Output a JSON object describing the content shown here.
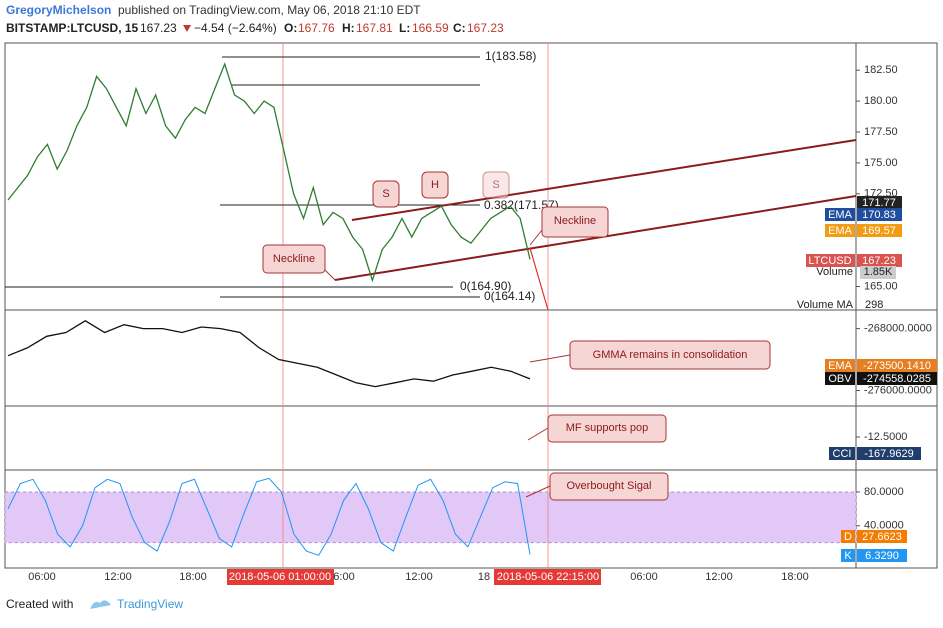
{
  "header": {
    "author": "GregoryMichelson",
    "published": "published on TradingView.com, May 06, 2018 21:10 EDT",
    "symbol": "BITSTAMP:LTCUSD, 15",
    "last": "167.23",
    "change": "−4.54 (−2.64%)",
    "o_label": "O:",
    "o": "167.76",
    "h_label": "H:",
    "h": "167.81",
    "l_label": "L:",
    "l": "166.59",
    "c_label": "C:",
    "c": "167.23"
  },
  "price": {
    "ylim": [
      163.1,
      184.7
    ],
    "yticks": [
      {
        "value": 182.5,
        "label": "182.50"
      },
      {
        "value": 180,
        "label": "180.00"
      },
      {
        "value": 177.5,
        "label": "177.50"
      },
      {
        "value": 175,
        "label": "175.00"
      },
      {
        "value": 172.5,
        "label": "172.50"
      },
      {
        "value": 165,
        "label": "165.00"
      }
    ],
    "values": [
      172.0,
      173.0,
      174.0,
      175.5,
      176.5,
      174.5,
      176.0,
      178.0,
      179.5,
      182.0,
      181.0,
      179.5,
      178.0,
      181.0,
      179.0,
      180.5,
      178.0,
      177.0,
      178.5,
      179.5,
      179.0,
      181.0,
      183.0,
      180.5,
      180.0,
      179.0,
      180.0,
      179.5,
      176.0,
      172.5,
      170.5,
      173.0,
      170.0,
      171.0,
      170.5,
      169.0,
      168.0,
      165.5,
      168.0,
      169.0,
      170.5,
      169.0,
      170.5,
      171.0,
      171.5,
      170.0,
      169.0,
      168.5,
      169.5,
      170.5,
      171.0,
      171.5,
      170.5,
      167.2
    ],
    "labels": {
      "top": "171.77",
      "ema1_name": "EMA",
      "ema1": "170.83",
      "ema2_name": "EMA",
      "ema2": "169.57",
      "sym": "LTCUSD",
      "last": "167.23",
      "vol_name": "Volume",
      "vol": "1.85K",
      "volma_name": "Volume MA",
      "volma": "298"
    },
    "fib": [
      "1(183.58)",
      "0.382(171.57)",
      "0(164.90)",
      "0(164.14)"
    ]
  },
  "annotations": {
    "s1": "S",
    "h": "H",
    "s2": "S",
    "neck1": "Neckline",
    "neck2": "Neckline",
    "gmma": "GMMA remains in consolidation",
    "mf": "MF supports pop",
    "ob": "Overbought Sigal"
  },
  "obv": {
    "ylim": [
      -278000,
      -265600
    ],
    "yticks": [
      {
        "value": -268000,
        "label": "-268000.0000"
      },
      {
        "value": -276000,
        "label": "-276000.0000"
      }
    ],
    "values": [
      -271500,
      -270500,
      -269000,
      -268500,
      -267000,
      -268500,
      -267500,
      -268000,
      -268000,
      -268500,
      -267800,
      -268000,
      -268500,
      -270500,
      -272000,
      -272500,
      -273000,
      -274000,
      -275000,
      -275500,
      -275000,
      -274500,
      -274800,
      -274000,
      -273500,
      -273000,
      -273500,
      -274500
    ],
    "labels": {
      "ema_name": "EMA",
      "ema": "-273500.1410",
      "obv_name": "OBV",
      "obv": "-274558.0285"
    }
  },
  "cci": {
    "yticks": [
      {
        "value": -12.5,
        "label": "-12.5000"
      }
    ],
    "labels": {
      "name": "CCI",
      "value": "-167.9629"
    }
  },
  "stoch": {
    "ylim": [
      -10,
      106
    ],
    "yticks": [
      {
        "value": 80,
        "label": "80.0000"
      },
      {
        "value": 40,
        "label": "40.0000"
      }
    ],
    "band": [
      20,
      80
    ],
    "values": [
      60,
      90,
      95,
      70,
      30,
      15,
      40,
      85,
      95,
      90,
      50,
      20,
      10,
      45,
      90,
      95,
      60,
      25,
      15,
      55,
      92,
      96,
      80,
      30,
      10,
      5,
      30,
      70,
      90,
      60,
      20,
      10,
      50,
      88,
      95,
      70,
      30,
      15,
      50,
      85,
      92,
      90,
      6
    ],
    "labels": {
      "d_name": "D",
      "d": "27.6623",
      "k_name": "K",
      "k": "6.3290"
    }
  },
  "time": [
    "06:00",
    "12:00",
    "18:00",
    "2018-05-06 01:00:00",
    "6:00",
    "12:00",
    "18",
    "2018-05-06 22:15:00",
    "06:00",
    "12:00",
    "18:00"
  ],
  "footer": {
    "created": "Created with",
    "brand": "TradingView"
  }
}
